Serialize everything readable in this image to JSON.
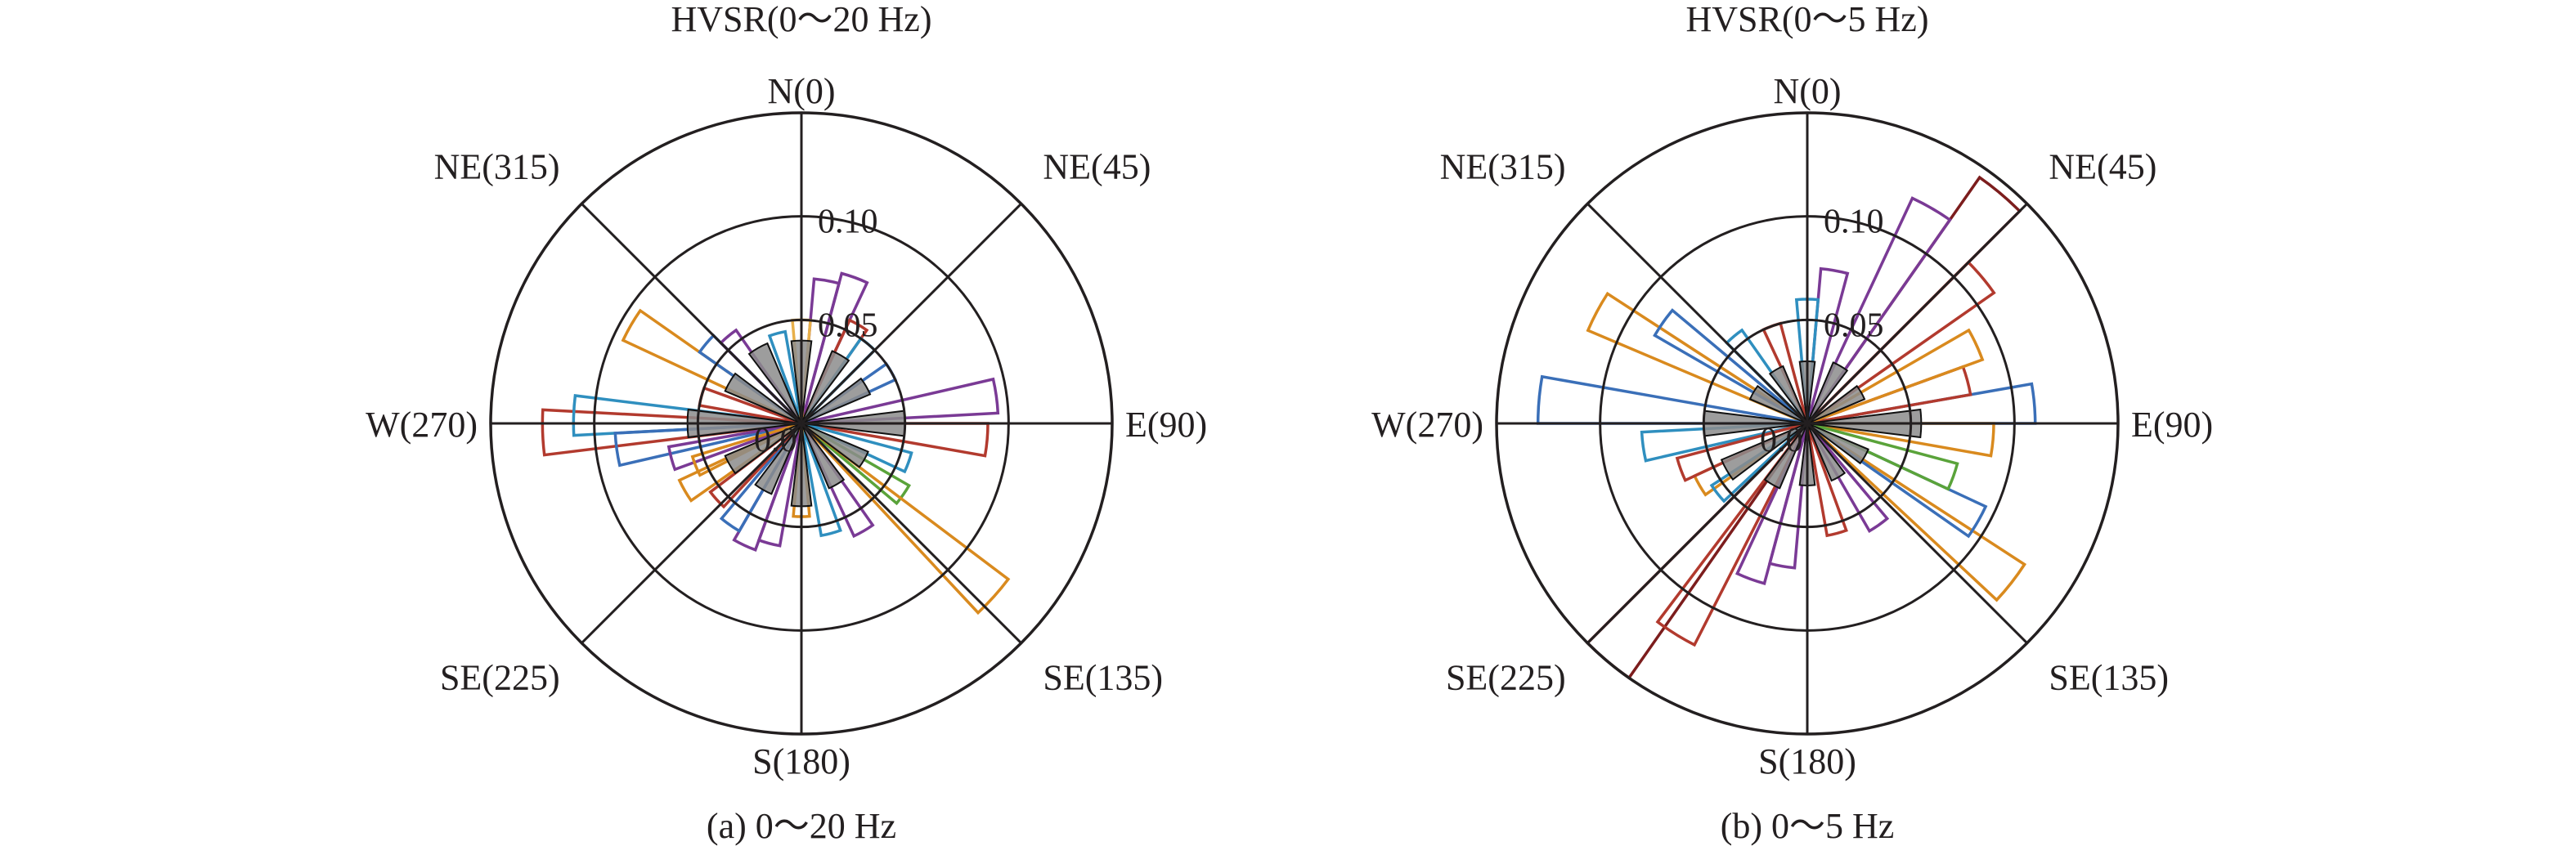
{
  "colors": {
    "axis": "#231f20",
    "mean_fill": "#8c8c8c",
    "series_palette": [
      "#3a6fb8",
      "#d98a1e",
      "#7a3a95",
      "#b23a2e",
      "#2f8fbf",
      "#5aa33a",
      "#7c1d1d",
      "#e8b04a",
      "#c0c0c0"
    ]
  },
  "chart_data": [
    {
      "type": "polar-rose",
      "panel": "a",
      "title": "HVSR(0～20 Hz)",
      "caption": "(a) 0～20 Hz",
      "rlim": [
        0,
        0.15
      ],
      "ticks": [
        {
          "value": 0.05,
          "label": "0.05"
        },
        {
          "value": 0.1,
          "label": "0.10"
        }
      ],
      "inner_tick_label": "0.0",
      "directions": [
        {
          "angle": 0,
          "label": "N(0)"
        },
        {
          "angle": 45,
          "label": "NE(45)"
        },
        {
          "angle": 90,
          "label": "E(90)"
        },
        {
          "angle": 135,
          "label": "SE(135)"
        },
        {
          "angle": 180,
          "label": "S(180)"
        },
        {
          "angle": 225,
          "label": "SE(225)"
        },
        {
          "angle": 270,
          "label": "W(270)"
        },
        {
          "angle": 315,
          "label": "NE(315)"
        }
      ],
      "sector_half_width_deg": 5,
      "mean_sectors": [
        {
          "angle": 0,
          "value": 0.04
        },
        {
          "angle": 30,
          "value": 0.038
        },
        {
          "angle": 60,
          "value": 0.036
        },
        {
          "angle": 90,
          "value": 0.05
        },
        {
          "angle": 120,
          "value": 0.035
        },
        {
          "angle": 150,
          "value": 0.034
        },
        {
          "angle": 180,
          "value": 0.04
        },
        {
          "angle": 210,
          "value": 0.037
        },
        {
          "angle": 240,
          "value": 0.04
        },
        {
          "angle": 270,
          "value": 0.055
        },
        {
          "angle": 300,
          "value": 0.04
        },
        {
          "angle": 330,
          "value": 0.042
        }
      ],
      "sectors": [
        {
          "angle": 268,
          "value": 0.125,
          "color": "#b23a2e"
        },
        {
          "angle": 272,
          "value": 0.11,
          "color": "#2f8fbf"
        },
        {
          "angle": 262,
          "value": 0.09,
          "color": "#3a6fb8"
        },
        {
          "angle": 255,
          "value": 0.065,
          "color": "#7a3a95"
        },
        {
          "angle": 300,
          "value": 0.095,
          "color": "#d98a1e"
        },
        {
          "angle": 310,
          "value": 0.06,
          "color": "#3a6fb8"
        },
        {
          "angle": 320,
          "value": 0.055,
          "color": "#7a3a95"
        },
        {
          "angle": 20,
          "value": 0.075,
          "color": "#7a3a95"
        },
        {
          "angle": 10,
          "value": 0.07,
          "color": "#7a3a95"
        },
        {
          "angle": 30,
          "value": 0.055,
          "color": "#b23a2e"
        },
        {
          "angle": 40,
          "value": 0.05,
          "color": "#2f8fbf"
        },
        {
          "angle": 82,
          "value": 0.095,
          "color": "#7a3a95"
        },
        {
          "angle": 95,
          "value": 0.09,
          "color": "#b23a2e"
        },
        {
          "angle": 110,
          "value": 0.055,
          "color": "#2f8fbf"
        },
        {
          "angle": 125,
          "value": 0.06,
          "color": "#5aa33a"
        },
        {
          "angle": 132,
          "value": 0.125,
          "color": "#d98a1e"
        },
        {
          "angle": 150,
          "value": 0.06,
          "color": "#7a3a95"
        },
        {
          "angle": 165,
          "value": 0.055,
          "color": "#2f8fbf"
        },
        {
          "angle": 195,
          "value": 0.06,
          "color": "#7a3a95"
        },
        {
          "angle": 205,
          "value": 0.065,
          "color": "#7a3a95"
        },
        {
          "angle": 215,
          "value": 0.06,
          "color": "#3a6fb8"
        },
        {
          "angle": 228,
          "value": 0.055,
          "color": "#b23a2e"
        },
        {
          "angle": 240,
          "value": 0.065,
          "color": "#d98a1e"
        },
        {
          "angle": 248,
          "value": 0.055,
          "color": "#d98a1e"
        },
        {
          "angle": 285,
          "value": 0.05,
          "color": "#b23a2e"
        },
        {
          "angle": 345,
          "value": 0.045,
          "color": "#2f8fbf"
        },
        {
          "angle": 0,
          "value": 0.05,
          "color": "#e8b04a"
        },
        {
          "angle": 60,
          "value": 0.05,
          "color": "#3a6fb8"
        },
        {
          "angle": 180,
          "value": 0.045,
          "color": "#d98a1e"
        }
      ]
    },
    {
      "type": "polar-rose",
      "panel": "b",
      "title": "HVSR(0～5 Hz)",
      "caption": "(b) 0～5 Hz",
      "rlim": [
        0,
        0.15
      ],
      "ticks": [
        {
          "value": 0.05,
          "label": "0.05"
        },
        {
          "value": 0.1,
          "label": "0.10"
        }
      ],
      "inner_tick_label": "0.0",
      "directions": [
        {
          "angle": 0,
          "label": "N(0)"
        },
        {
          "angle": 45,
          "label": "NE(45)"
        },
        {
          "angle": 90,
          "label": "E(90)"
        },
        {
          "angle": 135,
          "label": "SE(135)"
        },
        {
          "angle": 180,
          "label": "S(180)"
        },
        {
          "angle": 225,
          "label": "SE(225)"
        },
        {
          "angle": 270,
          "label": "W(270)"
        },
        {
          "angle": 315,
          "label": "NE(315)"
        }
      ],
      "sector_half_width_deg": 5,
      "mean_sectors": [
        {
          "angle": 0,
          "value": 0.03
        },
        {
          "angle": 30,
          "value": 0.032
        },
        {
          "angle": 60,
          "value": 0.03
        },
        {
          "angle": 90,
          "value": 0.055
        },
        {
          "angle": 120,
          "value": 0.032
        },
        {
          "angle": 150,
          "value": 0.03
        },
        {
          "angle": 180,
          "value": 0.03
        },
        {
          "angle": 210,
          "value": 0.034
        },
        {
          "angle": 240,
          "value": 0.045
        },
        {
          "angle": 270,
          "value": 0.05
        },
        {
          "angle": 300,
          "value": 0.03
        },
        {
          "angle": 330,
          "value": 0.03
        }
      ],
      "sectors": [
        {
          "angle": 40,
          "value": 0.145,
          "color": "#7c1d1d"
        },
        {
          "angle": 30,
          "value": 0.12,
          "color": "#7a3a95"
        },
        {
          "angle": 50,
          "value": 0.11,
          "color": "#b23a2e"
        },
        {
          "angle": 220,
          "value": 0.15,
          "color": "#7c1d1d"
        },
        {
          "angle": 212,
          "value": 0.12,
          "color": "#b23a2e"
        },
        {
          "angle": 200,
          "value": 0.08,
          "color": "#7a3a95"
        },
        {
          "angle": 190,
          "value": 0.07,
          "color": "#7a3a95"
        },
        {
          "angle": 298,
          "value": 0.115,
          "color": "#d98a1e"
        },
        {
          "angle": 305,
          "value": 0.085,
          "color": "#3a6fb8"
        },
        {
          "angle": 275,
          "value": 0.13,
          "color": "#3a6fb8"
        },
        {
          "angle": 262,
          "value": 0.08,
          "color": "#2f8fbf"
        },
        {
          "angle": 85,
          "value": 0.11,
          "color": "#3a6fb8"
        },
        {
          "angle": 95,
          "value": 0.09,
          "color": "#d98a1e"
        },
        {
          "angle": 75,
          "value": 0.08,
          "color": "#b23a2e"
        },
        {
          "angle": 65,
          "value": 0.09,
          "color": "#d98a1e"
        },
        {
          "angle": 128,
          "value": 0.125,
          "color": "#d98a1e"
        },
        {
          "angle": 120,
          "value": 0.095,
          "color": "#3a6fb8"
        },
        {
          "angle": 110,
          "value": 0.075,
          "color": "#5aa33a"
        },
        {
          "angle": 145,
          "value": 0.06,
          "color": "#7a3a95"
        },
        {
          "angle": 165,
          "value": 0.055,
          "color": "#b23a2e"
        },
        {
          "angle": 10,
          "value": 0.075,
          "color": "#7a3a95"
        },
        {
          "angle": 0,
          "value": 0.06,
          "color": "#2f8fbf"
        },
        {
          "angle": 240,
          "value": 0.06,
          "color": "#d98a1e"
        },
        {
          "angle": 250,
          "value": 0.065,
          "color": "#b23a2e"
        },
        {
          "angle": 320,
          "value": 0.055,
          "color": "#2f8fbf"
        },
        {
          "angle": 340,
          "value": 0.05,
          "color": "#b23a2e"
        },
        {
          "angle": 232,
          "value": 0.055,
          "color": "#2f8fbf"
        }
      ]
    }
  ]
}
